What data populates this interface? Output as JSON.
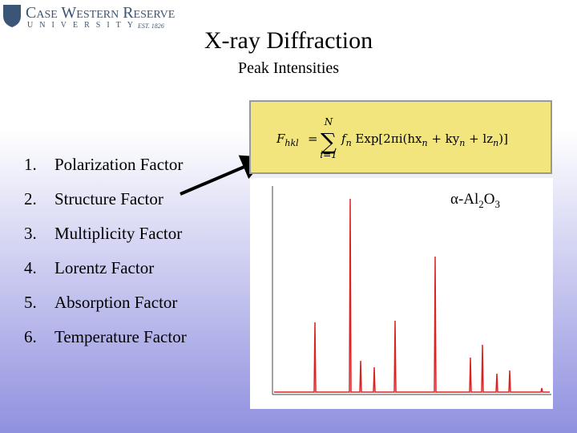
{
  "logo": {
    "name": "Case Western Reserve",
    "sub": "UNIVERSITY",
    "est": "EST. 1826"
  },
  "header": {
    "title": "X-ray Diffraction",
    "subtitle": "Peak Intensities"
  },
  "list": [
    {
      "number": "1.",
      "text": "Polarization Factor"
    },
    {
      "number": "2.",
      "text": "Structure Factor"
    },
    {
      "number": "3.",
      "text": "Multiplicity Factor"
    },
    {
      "number": "4.",
      "text": "Lorentz Factor"
    },
    {
      "number": "5.",
      "text": "Absorption Factor"
    },
    {
      "number": "6.",
      "text": "Temperature Factor"
    }
  ],
  "formula": {
    "lhs": "F",
    "lhs_sub": "hkl",
    "eq": "=",
    "sum": "∑",
    "sum_top": "N",
    "sum_bottom": "i=1",
    "body": [
      "f",
      "n",
      " Exp[2πi(hx",
      "n",
      " + ky",
      "n",
      " + lz",
      "n",
      ")]"
    ]
  },
  "sample": [
    "α-Al",
    "2",
    "O",
    "3"
  ]
}
